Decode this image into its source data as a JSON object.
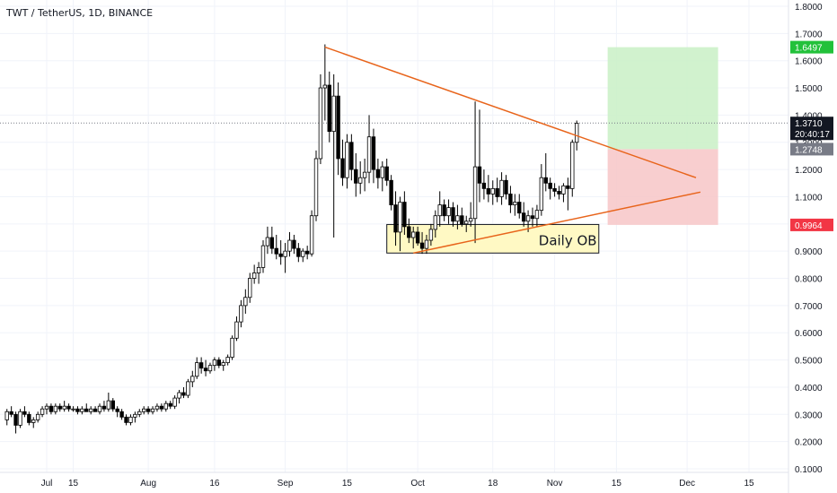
{
  "chart_data": {
    "type": "candlestick",
    "title": "TWT / TetherUS, 1D, BINANCE",
    "y_ticks": [
      "1.8000",
      "1.7000",
      "1.6000",
      "1.5000",
      "1.4000",
      "1.3000",
      "1.2000",
      "1.1000",
      "1.0000",
      "0.9000",
      "0.8000",
      "0.7000",
      "0.6000",
      "0.5000",
      "0.4000",
      "0.3000",
      "0.2000",
      "0.1000"
    ],
    "y_tick_values": [
      1.8,
      1.7,
      1.6,
      1.5,
      1.4,
      1.3,
      1.2,
      1.1,
      1.0,
      0.9,
      0.8,
      0.7,
      0.6,
      0.5,
      0.4,
      0.3,
      0.2,
      0.1
    ],
    "ylim": [
      0.09,
      1.83
    ],
    "x_ticks": [
      {
        "label": "Jul",
        "day": 9
      },
      {
        "label": "15",
        "day": 15
      },
      {
        "label": "Aug",
        "day": 32
      },
      {
        "label": "16",
        "day": 47
      },
      {
        "label": "Sep",
        "day": 63
      },
      {
        "label": "15",
        "day": 77
      },
      {
        "label": "Oct",
        "day": 93
      },
      {
        "label": "18",
        "day": 110
      },
      {
        "label": "Nov",
        "day": 124
      },
      {
        "label": "15",
        "day": 138
      },
      {
        "label": "Dec",
        "day": 154
      },
      {
        "label": "15",
        "day": 168
      }
    ],
    "xlim": [
      0,
      173
    ],
    "candles_ohlc": [
      [
        0.28,
        0.32,
        0.26,
        0.31
      ],
      [
        0.31,
        0.33,
        0.29,
        0.3
      ],
      [
        0.3,
        0.31,
        0.23,
        0.26
      ],
      [
        0.26,
        0.32,
        0.25,
        0.31
      ],
      [
        0.31,
        0.33,
        0.29,
        0.3
      ],
      [
        0.3,
        0.31,
        0.26,
        0.27
      ],
      [
        0.27,
        0.29,
        0.25,
        0.28
      ],
      [
        0.28,
        0.31,
        0.27,
        0.3
      ],
      [
        0.3,
        0.33,
        0.29,
        0.32
      ],
      [
        0.32,
        0.34,
        0.3,
        0.33
      ],
      [
        0.33,
        0.34,
        0.3,
        0.31
      ],
      [
        0.31,
        0.34,
        0.3,
        0.33
      ],
      [
        0.33,
        0.34,
        0.31,
        0.32
      ],
      [
        0.32,
        0.35,
        0.31,
        0.33
      ],
      [
        0.33,
        0.34,
        0.31,
        0.32
      ],
      [
        0.32,
        0.33,
        0.31,
        0.32
      ],
      [
        0.32,
        0.33,
        0.3,
        0.31
      ],
      [
        0.31,
        0.33,
        0.3,
        0.32
      ],
      [
        0.32,
        0.34,
        0.31,
        0.31
      ],
      [
        0.31,
        0.33,
        0.3,
        0.32
      ],
      [
        0.32,
        0.33,
        0.31,
        0.31
      ],
      [
        0.31,
        0.34,
        0.3,
        0.33
      ],
      [
        0.33,
        0.35,
        0.31,
        0.32
      ],
      [
        0.32,
        0.38,
        0.31,
        0.35
      ],
      [
        0.35,
        0.36,
        0.31,
        0.32
      ],
      [
        0.32,
        0.33,
        0.29,
        0.31
      ],
      [
        0.31,
        0.32,
        0.28,
        0.29
      ],
      [
        0.29,
        0.3,
        0.26,
        0.27
      ],
      [
        0.27,
        0.3,
        0.26,
        0.29
      ],
      [
        0.29,
        0.31,
        0.27,
        0.3
      ],
      [
        0.3,
        0.32,
        0.29,
        0.31
      ],
      [
        0.31,
        0.33,
        0.3,
        0.32
      ],
      [
        0.32,
        0.33,
        0.3,
        0.31
      ],
      [
        0.31,
        0.33,
        0.3,
        0.32
      ],
      [
        0.32,
        0.34,
        0.31,
        0.33
      ],
      [
        0.33,
        0.34,
        0.31,
        0.32
      ],
      [
        0.32,
        0.35,
        0.31,
        0.34
      ],
      [
        0.34,
        0.35,
        0.32,
        0.33
      ],
      [
        0.33,
        0.37,
        0.32,
        0.36
      ],
      [
        0.36,
        0.39,
        0.34,
        0.38
      ],
      [
        0.38,
        0.4,
        0.36,
        0.37
      ],
      [
        0.37,
        0.43,
        0.36,
        0.42
      ],
      [
        0.42,
        0.46,
        0.4,
        0.44
      ],
      [
        0.44,
        0.51,
        0.43,
        0.49
      ],
      [
        0.49,
        0.51,
        0.45,
        0.47
      ],
      [
        0.47,
        0.5,
        0.44,
        0.46
      ],
      [
        0.46,
        0.49,
        0.45,
        0.48
      ],
      [
        0.48,
        0.51,
        0.46,
        0.5
      ],
      [
        0.5,
        0.51,
        0.47,
        0.48
      ],
      [
        0.48,
        0.5,
        0.46,
        0.49
      ],
      [
        0.49,
        0.52,
        0.48,
        0.51
      ],
      [
        0.51,
        0.59,
        0.5,
        0.58
      ],
      [
        0.58,
        0.66,
        0.57,
        0.64
      ],
      [
        0.64,
        0.72,
        0.62,
        0.7
      ],
      [
        0.7,
        0.76,
        0.67,
        0.73
      ],
      [
        0.73,
        0.82,
        0.71,
        0.8
      ],
      [
        0.8,
        0.85,
        0.78,
        0.82
      ],
      [
        0.82,
        0.86,
        0.78,
        0.84
      ],
      [
        0.84,
        0.94,
        0.82,
        0.92
      ],
      [
        0.92,
        0.99,
        0.89,
        0.95
      ],
      [
        0.95,
        0.99,
        0.89,
        0.91
      ],
      [
        0.91,
        0.96,
        0.87,
        0.89
      ],
      [
        0.89,
        0.94,
        0.85,
        0.88
      ],
      [
        0.88,
        0.93,
        0.82,
        0.9
      ],
      [
        0.9,
        0.97,
        0.88,
        0.94
      ],
      [
        0.94,
        0.96,
        0.89,
        0.91
      ],
      [
        0.91,
        0.93,
        0.86,
        0.88
      ],
      [
        0.88,
        0.91,
        0.86,
        0.9
      ],
      [
        0.9,
        0.92,
        0.87,
        0.89
      ],
      [
        0.89,
        1.05,
        0.88,
        1.03
      ],
      [
        1.03,
        1.27,
        1.01,
        1.24
      ],
      [
        1.24,
        1.55,
        1.22,
        1.5
      ],
      [
        1.5,
        1.66,
        1.38,
        1.51
      ],
      [
        1.51,
        1.56,
        1.3,
        1.34
      ],
      [
        1.34,
        1.55,
        0.95,
        1.47
      ],
      [
        1.47,
        1.52,
        1.18,
        1.24
      ],
      [
        1.24,
        1.31,
        1.14,
        1.17
      ],
      [
        1.17,
        1.33,
        1.13,
        1.3
      ],
      [
        1.3,
        1.33,
        1.16,
        1.2
      ],
      [
        1.2,
        1.26,
        1.1,
        1.15
      ],
      [
        1.15,
        1.23,
        1.11,
        1.17
      ],
      [
        1.17,
        1.24,
        1.12,
        1.19
      ],
      [
        1.19,
        1.4,
        1.15,
        1.32
      ],
      [
        1.32,
        1.35,
        1.15,
        1.2
      ],
      [
        1.2,
        1.24,
        1.13,
        1.17
      ],
      [
        1.17,
        1.23,
        1.12,
        1.21
      ],
      [
        1.21,
        1.24,
        1.14,
        1.16
      ],
      [
        1.16,
        1.18,
        1.05,
        1.07
      ],
      [
        1.07,
        1.12,
        0.92,
        0.97
      ],
      [
        0.97,
        1.1,
        0.9,
        1.08
      ],
      [
        1.08,
        1.12,
        0.96,
        0.99
      ],
      [
        0.99,
        1.02,
        0.93,
        0.95
      ],
      [
        0.95,
        0.99,
        0.91,
        0.97
      ],
      [
        0.97,
        0.99,
        0.92,
        0.93
      ],
      [
        0.93,
        0.97,
        0.89,
        0.91
      ],
      [
        0.91,
        0.96,
        0.89,
        0.94
      ],
      [
        0.94,
        1.0,
        0.92,
        0.98
      ],
      [
        0.98,
        1.05,
        0.95,
        1.03
      ],
      [
        1.03,
        1.12,
        0.99,
        1.07
      ],
      [
        1.07,
        1.09,
        1.01,
        1.03
      ],
      [
        1.03,
        1.09,
        1.0,
        1.06
      ],
      [
        1.06,
        1.08,
        0.99,
        1.01
      ],
      [
        1.01,
        1.07,
        0.98,
        1.03
      ],
      [
        1.03,
        1.06,
        0.99,
        1.0
      ],
      [
        1.0,
        1.03,
        0.97,
        1.01
      ],
      [
        1.01,
        1.08,
        0.99,
        1.02
      ],
      [
        1.02,
        1.45,
        0.93,
        1.21
      ],
      [
        1.21,
        1.42,
        1.08,
        1.15
      ],
      [
        1.15,
        1.2,
        1.09,
        1.13
      ],
      [
        1.13,
        1.18,
        1.08,
        1.11
      ],
      [
        1.11,
        1.16,
        1.07,
        1.13
      ],
      [
        1.13,
        1.17,
        1.08,
        1.1
      ],
      [
        1.1,
        1.19,
        1.07,
        1.16
      ],
      [
        1.16,
        1.18,
        1.09,
        1.11
      ],
      [
        1.11,
        1.14,
        1.04,
        1.07
      ],
      [
        1.07,
        1.11,
        1.03,
        1.08
      ],
      [
        1.08,
        1.11,
        1.02,
        1.04
      ],
      [
        1.04,
        1.08,
        0.99,
        1.01
      ],
      [
        1.01,
        1.05,
        0.97,
        1.03
      ],
      [
        1.03,
        1.06,
        0.99,
        1.02
      ],
      [
        1.02,
        1.07,
        0.99,
        1.05
      ],
      [
        1.05,
        1.22,
        1.03,
        1.17
      ],
      [
        1.17,
        1.26,
        1.12,
        1.15
      ],
      [
        1.15,
        1.17,
        1.09,
        1.13
      ],
      [
        1.13,
        1.15,
        1.1,
        1.12
      ],
      [
        1.12,
        1.14,
        1.09,
        1.11
      ],
      [
        1.11,
        1.15,
        1.08,
        1.14
      ],
      [
        1.14,
        1.17,
        1.05,
        1.13
      ],
      [
        1.13,
        1.31,
        1.1,
        1.3
      ],
      [
        1.3,
        1.38,
        1.27,
        1.37
      ]
    ],
    "start_day": 0,
    "trendlines": [
      {
        "name": "descending",
        "from": [
          72,
          1.65
        ],
        "to": [
          156,
          1.17
        ],
        "color": "#e8641b"
      },
      {
        "name": "ascending",
        "from": [
          92,
          0.893
        ],
        "to": [
          157,
          1.117
        ],
        "color": "#e8641b"
      }
    ],
    "order_block": {
      "label": "Daily OB",
      "x_range": [
        86,
        134
      ],
      "y_range": [
        0.893,
        0.998
      ]
    },
    "position": {
      "entry": 1.2748,
      "target": 1.6497,
      "stop": 0.9964,
      "x_range": [
        136,
        161
      ]
    },
    "last_price": {
      "value": "1.3710",
      "countdown": "20:40:17"
    },
    "price_labels": [
      {
        "text": "1.6497",
        "value": 1.6497,
        "color": "#22c13a"
      },
      {
        "text": "1.2748",
        "value": 1.2748,
        "color": "#787b86"
      },
      {
        "text": "0.9964",
        "value": 0.9964,
        "color": "#f23645"
      }
    ],
    "colors": {
      "up": "#ffffff",
      "down": "#000000",
      "profit_zone": "#c9f0c5",
      "loss_zone": "#f7c5c7",
      "ob_fill": "#fff9c4",
      "grid": "#f0f3fa"
    }
  }
}
